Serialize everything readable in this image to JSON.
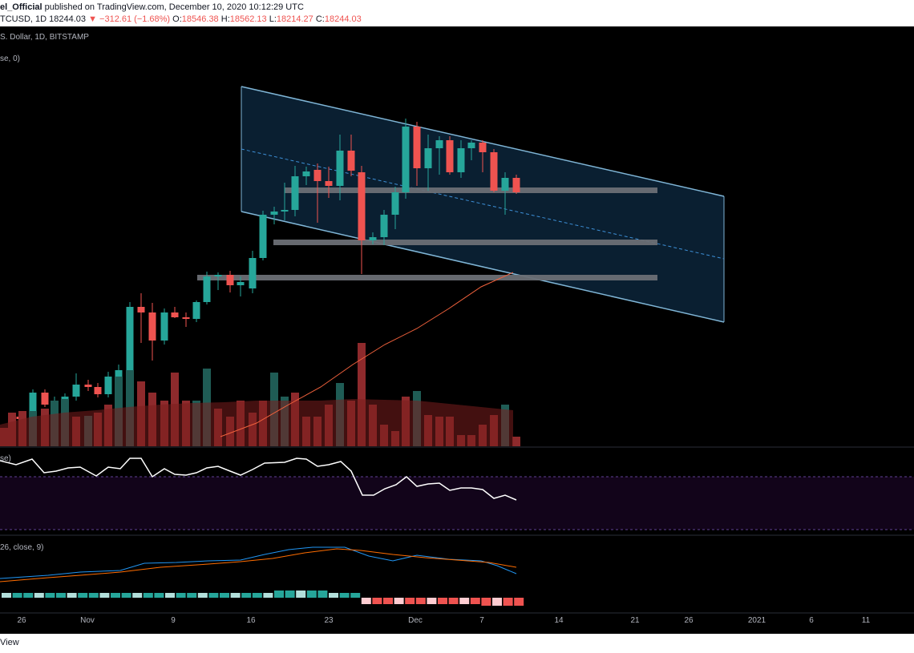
{
  "header": {
    "line1_user": "el_Official",
    "line1_text": " published on TradingView.com, December 10, 2020 10:12:29 UTC",
    "symbol": "TCUSD, 1D",
    "last": "18244.03",
    "arrow": "▼",
    "change": "−312.61 (−1.68%)",
    "o_label": "O:",
    "o_value": "18546.38",
    "h_label": "H:",
    "h_value": "18562.13",
    "l_label": "L:",
    "l_value": "18214.27",
    "c_label": "C:",
    "c_value": "18244.03"
  },
  "legend": {
    "main": "S. Dollar, 1D, BITSTAMP",
    "ma": "se, 0)",
    "rsi": "se)",
    "macd": "26, close, 9)"
  },
  "footer": {
    "text": "View"
  },
  "colors": {
    "up": "#26a69a",
    "down": "#ef5350",
    "volUp": "#1f5c55",
    "volDown": "#8e2a2c",
    "volMaFill": "#7a1d1d",
    "channel": "#7fb5d6",
    "channelFill": "#0b2236",
    "zone": "#6b6f75",
    "ma": "#f0613c",
    "rsi": "#ffffff",
    "rsiBand": "#12041a",
    "macd": "#2196f3",
    "signal": "#ff6d00"
  },
  "chart_data": {
    "type": "candlestick",
    "x_tick_labels": [
      "26",
      "Nov",
      "9",
      "16",
      "23",
      "Dec",
      "7",
      "14",
      "21",
      "26",
      "2021",
      "6",
      "11"
    ]
  }
}
